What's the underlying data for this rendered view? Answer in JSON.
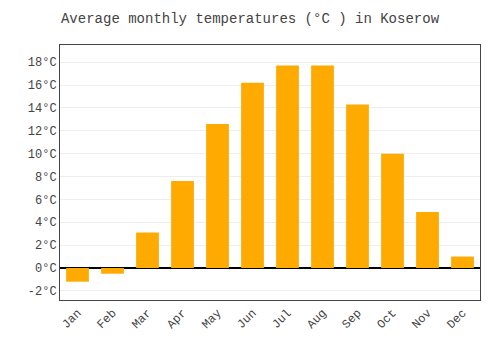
{
  "chart_data": {
    "type": "bar",
    "title": "Average monthly temperatures (°C ) in Koserow",
    "categories": [
      "Jan",
      "Feb",
      "Mar",
      "Apr",
      "May",
      "Jun",
      "Jul",
      "Aug",
      "Sep",
      "Oct",
      "Nov",
      "Dec"
    ],
    "values": [
      -1.2,
      -0.5,
      3.1,
      7.6,
      12.6,
      16.2,
      17.7,
      17.7,
      14.3,
      10.0,
      4.9,
      1.0
    ],
    "color": "#FFAA00",
    "ylim": [
      -2.8,
      19.5
    ],
    "yticks": [
      {
        "value": -2,
        "label": "-2°C"
      },
      {
        "value": 0,
        "label": "0°C"
      },
      {
        "value": 2,
        "label": "2°C"
      },
      {
        "value": 4,
        "label": "4°C"
      },
      {
        "value": 6,
        "label": "6°C"
      },
      {
        "value": 8,
        "label": "8°C"
      },
      {
        "value": 10,
        "label": "10°C"
      },
      {
        "value": 12,
        "label": "12°C"
      },
      {
        "value": 14,
        "label": "14°C"
      },
      {
        "value": 16,
        "label": "16°C"
      },
      {
        "value": 18,
        "label": "18°C"
      }
    ],
    "grid": true
  }
}
